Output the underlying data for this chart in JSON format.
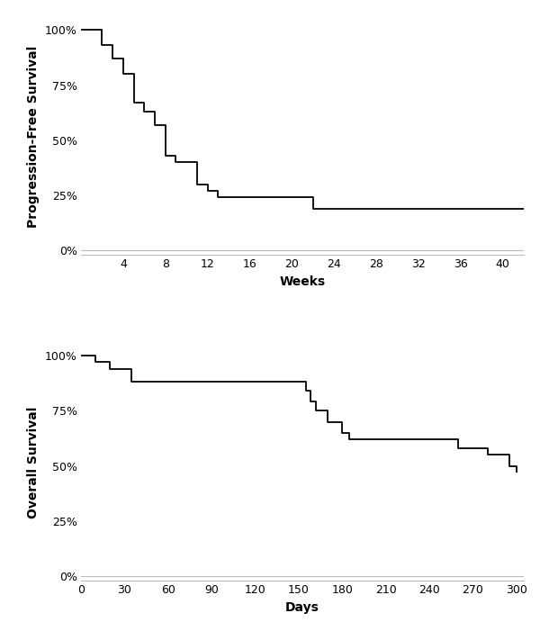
{
  "pfs": {
    "times": [
      0,
      2,
      3,
      4,
      5,
      6,
      7,
      8,
      9,
      11,
      12,
      13,
      22,
      42
    ],
    "survival": [
      1.0,
      0.93,
      0.87,
      0.8,
      0.67,
      0.63,
      0.57,
      0.43,
      0.4,
      0.3,
      0.27,
      0.24,
      0.19,
      0.19
    ],
    "ylabel": "Progression-Free Survival",
    "xlabel": "Weeks",
    "yticks": [
      0.0,
      0.25,
      0.5,
      0.75,
      1.0
    ],
    "yticklabels": [
      "0%",
      "25%",
      "50%",
      "75%",
      "100%"
    ],
    "xticks": [
      4,
      8,
      12,
      16,
      20,
      24,
      28,
      32,
      36,
      40
    ],
    "xlim": [
      0,
      42
    ],
    "ylim": [
      -0.02,
      1.05
    ]
  },
  "os": {
    "times": [
      0,
      10,
      20,
      35,
      45,
      150,
      155,
      158,
      162,
      170,
      180,
      185,
      195,
      248,
      260,
      280,
      295,
      300
    ],
    "survival": [
      1.0,
      0.97,
      0.94,
      0.88,
      0.88,
      0.88,
      0.84,
      0.79,
      0.75,
      0.7,
      0.65,
      0.62,
      0.62,
      0.62,
      0.58,
      0.55,
      0.5,
      0.47
    ],
    "ylabel": "Overall Survival",
    "xlabel": "Days",
    "yticks": [
      0.0,
      0.25,
      0.5,
      0.75,
      1.0
    ],
    "yticklabels": [
      "0%",
      "25%",
      "50%",
      "75%",
      "100%"
    ],
    "xticks": [
      0,
      30,
      60,
      90,
      120,
      150,
      180,
      210,
      240,
      270,
      300
    ],
    "xlim": [
      0,
      305
    ],
    "ylim": [
      -0.02,
      1.05
    ]
  },
  "line_color": "#000000",
  "line_width": 1.3,
  "bg_color": "#ffffff",
  "spine_color": "#bbbbbb",
  "tick_color": "#000000",
  "label_fontsize": 10,
  "tick_fontsize": 9,
  "fig_width": 6.0,
  "fig_height": 7.01
}
